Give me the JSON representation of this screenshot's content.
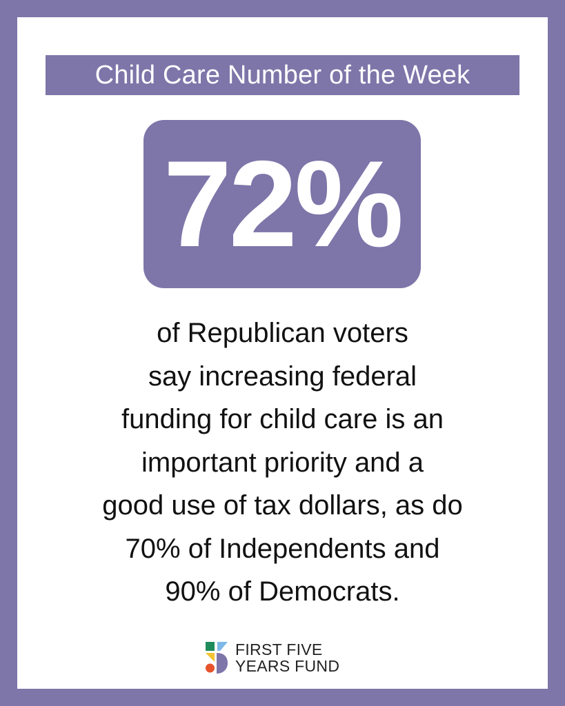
{
  "header": {
    "title": "Child Care Number of the Week"
  },
  "stat": {
    "value": "72%"
  },
  "body": {
    "lines": [
      "of Republican voters",
      "say increasing federal",
      "funding for child care is an",
      "important priority and a",
      "good use of tax dollars, as do",
      "70% of Independents and",
      "90% of Democrats."
    ]
  },
  "logo": {
    "line1": "FIRST FIVE",
    "line2": "YEARS FUND"
  },
  "colors": {
    "accent": "#7e75a9",
    "logo_green": "#1e8c5a",
    "logo_blue": "#7db8e8",
    "logo_yellow": "#f2c432",
    "logo_red": "#e8532c",
    "logo_purple": "#7e75a9"
  }
}
